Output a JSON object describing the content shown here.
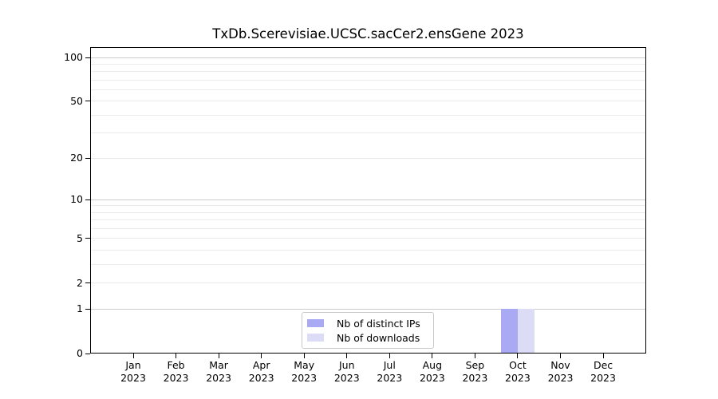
{
  "chart_data": {
    "type": "bar",
    "title": "TxDb.Scerevisiae.UCSC.sacCer2.ensGene 2023",
    "xlabel": "",
    "ylabel": "",
    "categories": [
      "Jan",
      "Feb",
      "Mar",
      "Apr",
      "May",
      "Jun",
      "Jul",
      "Aug",
      "Sep",
      "Oct",
      "Nov",
      "Dec"
    ],
    "category_year": "2023",
    "series": [
      {
        "name": "Nb of distinct IPs",
        "color": "#a9a9f4",
        "values": [
          0,
          0,
          0,
          0,
          0,
          0,
          0,
          0,
          0,
          1,
          0,
          0
        ]
      },
      {
        "name": "Nb of downloads",
        "color": "#dcdcf7",
        "values": [
          0,
          0,
          0,
          0,
          0,
          0,
          0,
          0,
          0,
          1,
          0,
          0
        ]
      }
    ],
    "y_scale": "log1p",
    "ylim": [
      0,
      118
    ],
    "y_ticks": [
      0,
      1,
      2,
      5,
      10,
      20,
      50,
      100
    ],
    "y_major_gridlines": [
      1,
      10,
      100
    ],
    "y_minor_gridlines": [
      2,
      3,
      4,
      5,
      6,
      7,
      8,
      9,
      20,
      30,
      40,
      50,
      60,
      70,
      80,
      90
    ],
    "grid": "horizontal",
    "legend_position": "bottom-center"
  },
  "colors": {
    "background": "#ffffff",
    "axis": "#000000",
    "text": "#000000",
    "major_grid": "#cccccc",
    "minor_grid": "#ececec",
    "legend_border": "#c9c9c9"
  }
}
